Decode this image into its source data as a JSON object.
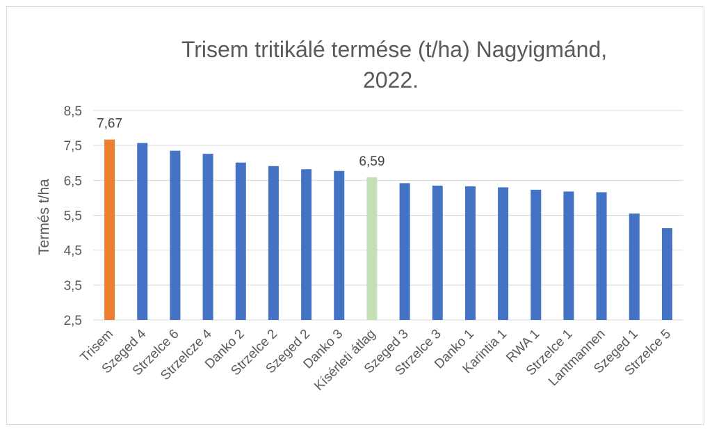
{
  "chart_data": {
    "type": "bar",
    "title_lines": [
      "Trisem tritikálé termése (t/ha) Nagyigmánd,",
      "2022."
    ],
    "ylabel": "Termés t/ha",
    "xlabel": "",
    "ylim": [
      2.5,
      8.5
    ],
    "yticks": [
      "2,5",
      "3,5",
      "4,5",
      "5,5",
      "6,5",
      "7,5",
      "8,5"
    ],
    "ytick_values": [
      2.5,
      3.5,
      4.5,
      5.5,
      6.5,
      7.5,
      8.5
    ],
    "grid": true,
    "categories": [
      "Trisem",
      "Szeged 4",
      "Strzelce 6",
      "Strzelcze 4",
      "Danko 2",
      "Strzelce 2",
      "Szeged 2",
      "Danko 3",
      "Kísérleti átlag",
      "Szeged 3",
      "Strzelce 3",
      "Danko 1",
      "Karintia 1",
      "RWA 1",
      "Strzelce 1",
      "Lantmannen",
      "Szeged 1",
      "Strzelce 5"
    ],
    "values": [
      7.67,
      7.57,
      7.35,
      7.26,
      7.01,
      6.91,
      6.82,
      6.77,
      6.59,
      6.42,
      6.35,
      6.33,
      6.3,
      6.23,
      6.18,
      6.16,
      5.55,
      5.13
    ],
    "bar_colors": [
      "#ed7d31",
      "#4472c4",
      "#4472c4",
      "#4472c4",
      "#4472c4",
      "#4472c4",
      "#4472c4",
      "#4472c4",
      "#c5e0b4",
      "#4472c4",
      "#4472c4",
      "#4472c4",
      "#4472c4",
      "#4472c4",
      "#4472c4",
      "#4472c4",
      "#4472c4",
      "#4472c4"
    ],
    "data_labels": [
      {
        "index": 0,
        "text": "7,67"
      },
      {
        "index": 8,
        "text": "6,59"
      }
    ],
    "colors": {
      "highlight": "#ed7d31",
      "default": "#4472c4",
      "average": "#c5e0b4",
      "grid": "#d9d9d9"
    }
  }
}
